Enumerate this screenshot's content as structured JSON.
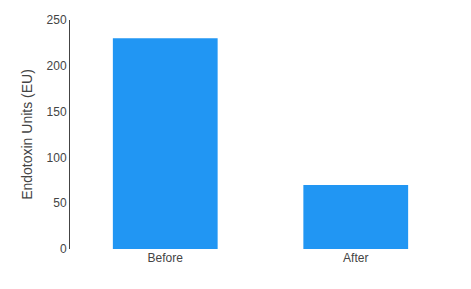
{
  "chart_data": {
    "type": "bar",
    "categories": [
      "Before",
      "After"
    ],
    "values": [
      230,
      70
    ],
    "color": "#2196F3",
    "ylabel": "Endotoxin Units (EU)",
    "ylim": [
      0,
      250
    ],
    "yticks": [
      0,
      50,
      100,
      150,
      200,
      250
    ],
    "grid": false
  }
}
